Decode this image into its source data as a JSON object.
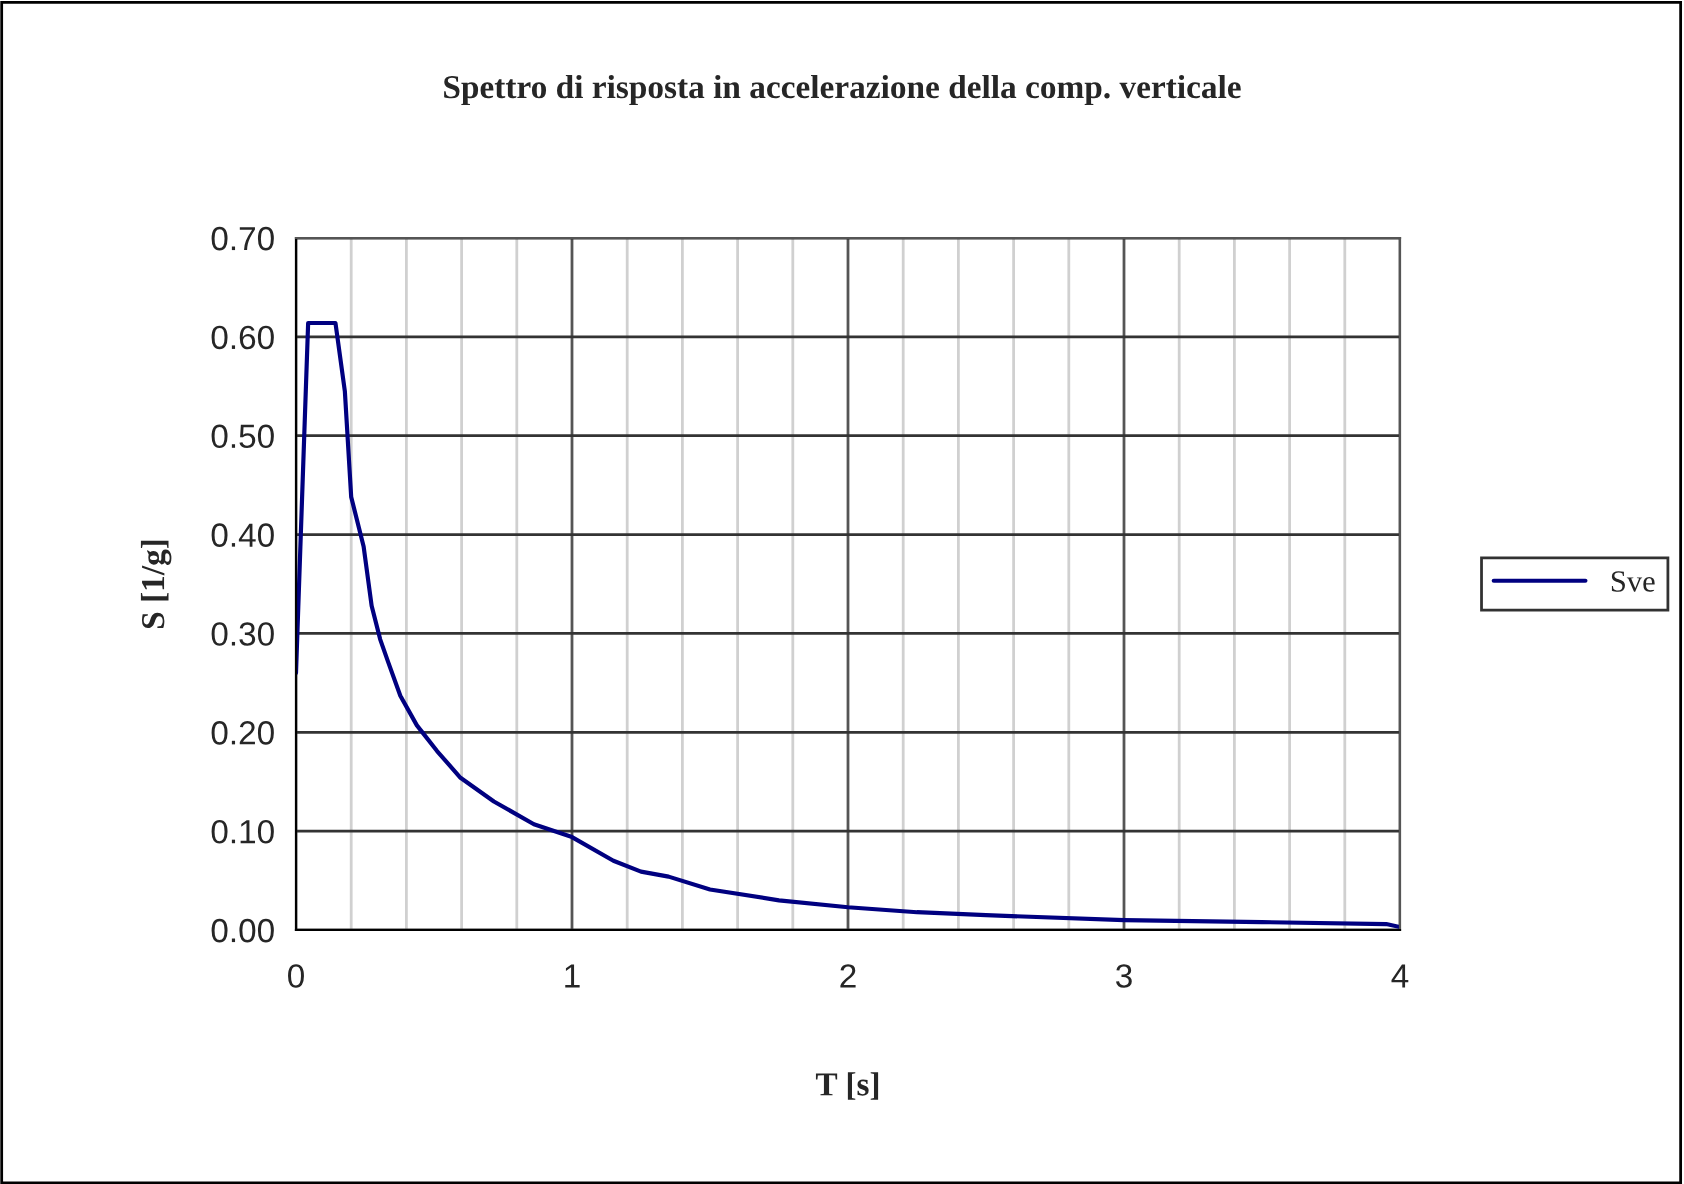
{
  "chart_data": {
    "type": "line",
    "title": "Spettro di risposta in accelerazione della comp. verticale",
    "xlabel": "T [s]",
    "ylabel": "S [1/g]",
    "series": [
      {
        "name": "Sve",
        "color": "#000080",
        "x": [
          0,
          0.044,
          0.143,
          0.177,
          0.2,
          0.245,
          0.274,
          0.305,
          0.334,
          0.378,
          0.438,
          0.511,
          0.596,
          0.717,
          0.862,
          1.0,
          1.15,
          1.25,
          1.35,
          1.5,
          1.75,
          2.0,
          2.25,
          2.5,
          3.0,
          3.5,
          3.95,
          4.0
        ],
        "values": [
          0.26,
          0.614,
          0.614,
          0.545,
          0.438,
          0.388,
          0.328,
          0.294,
          0.271,
          0.237,
          0.207,
          0.181,
          0.154,
          0.13,
          0.107,
          0.094,
          0.07,
          0.059,
          0.054,
          0.041,
          0.03,
          0.023,
          0.018,
          0.015,
          0.01,
          0.008,
          0.006,
          0.003
        ]
      }
    ],
    "xlim": [
      0,
      4
    ],
    "xticks": [
      0,
      1,
      2,
      3,
      4
    ],
    "ylim": [
      0,
      0.7
    ],
    "yticks": [
      {
        "value": 0,
        "label": "0.00"
      },
      {
        "value": 0.1,
        "label": "0.10"
      },
      {
        "value": 0.2,
        "label": "0.20"
      },
      {
        "value": 0.3,
        "label": "0.30"
      },
      {
        "value": 0.4,
        "label": "0.40"
      },
      {
        "value": 0.5,
        "label": "0.50"
      },
      {
        "value": 0.6,
        "label": "0.60"
      },
      {
        "value": 0.7,
        "label": "0.70"
      }
    ],
    "grid": true,
    "legend": "right",
    "marker": "none",
    "line_style": "solid"
  }
}
